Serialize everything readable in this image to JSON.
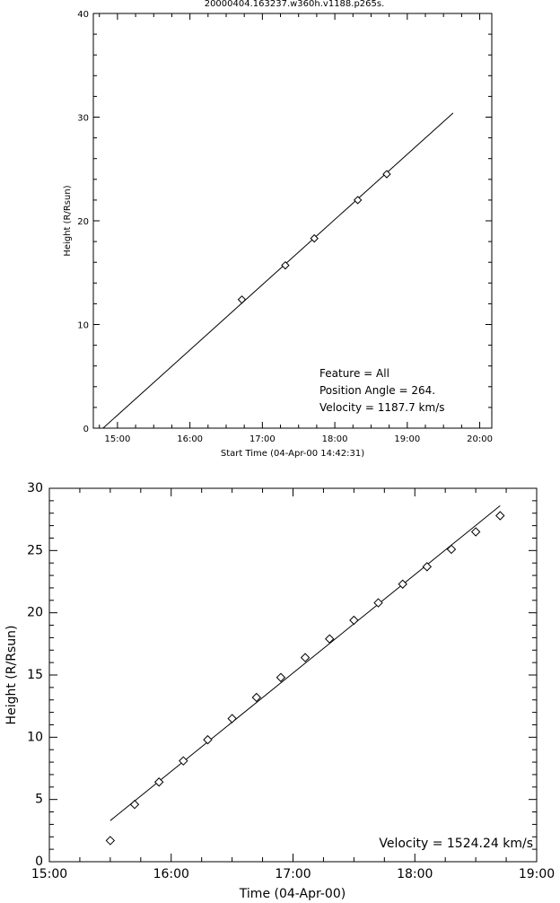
{
  "chart_data": [
    {
      "type": "line",
      "title": "20000404.163237.w360h.v1188.p265s.",
      "xlabel": "Start Time (04-Apr-00 14:42:31)",
      "ylabel": "Height (R/Rsun)",
      "xlim": [
        "14:40",
        "20:10"
      ],
      "ylim": [
        0,
        40
      ],
      "x_ticks": [
        "15:00",
        "16:00",
        "17:00",
        "18:00",
        "19:00",
        "20:00"
      ],
      "y_ticks": [
        0,
        10,
        20,
        30,
        40
      ],
      "series": [
        {
          "kind": "line",
          "x": [
            "14:48",
            "19:38"
          ],
          "y": [
            0.0,
            30.4
          ]
        },
        {
          "kind": "points",
          "x": [
            "16:43",
            "17:19",
            "17:43",
            "18:19",
            "18:43"
          ],
          "y": [
            12.4,
            15.7,
            18.3,
            22.0,
            24.5
          ]
        }
      ],
      "annotations": [
        "Feature = All",
        "Position Angle =  264.",
        "Velocity =  1187.7 km/s"
      ]
    },
    {
      "type": "scatter",
      "title": "",
      "xlabel": "Time (04-Apr-00)",
      "ylabel": "Height (R/Rsun)",
      "xlim": [
        "15:00",
        "19:00"
      ],
      "ylim": [
        0,
        30
      ],
      "x_ticks": [
        "15:00",
        "16:00",
        "17:00",
        "18:00",
        "19:00"
      ],
      "y_ticks": [
        0,
        5,
        10,
        15,
        20,
        25,
        30
      ],
      "series": [
        {
          "kind": "line",
          "x": [
            "15:30",
            "18:42"
          ],
          "y": [
            3.3,
            28.6
          ]
        },
        {
          "kind": "points",
          "x": [
            "15:30",
            "15:42",
            "15:54",
            "16:06",
            "16:18",
            "16:30",
            "16:42",
            "16:54",
            "17:06",
            "17:18",
            "17:30",
            "17:42",
            "17:54",
            "18:06",
            "18:18",
            "18:30",
            "18:42"
          ],
          "y": [
            1.7,
            4.6,
            6.4,
            8.1,
            9.8,
            11.5,
            13.2,
            14.8,
            16.4,
            17.9,
            19.4,
            20.8,
            22.3,
            23.7,
            25.1,
            26.5,
            27.8
          ]
        }
      ],
      "annotations": [
        "Velocity = 1524.24 km/s"
      ]
    }
  ]
}
